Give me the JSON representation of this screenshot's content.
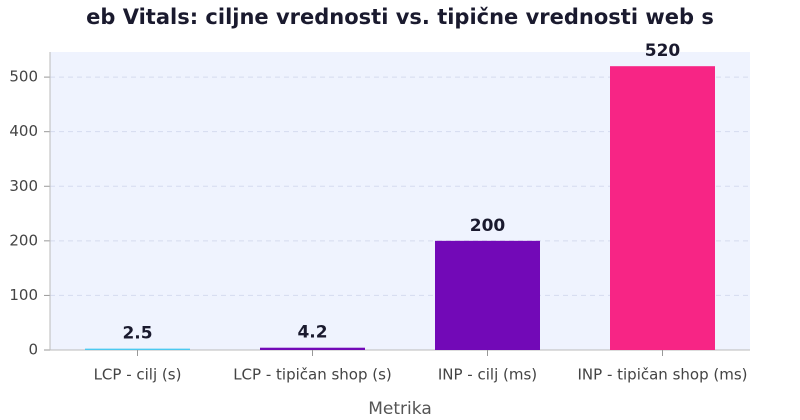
{
  "chart_data": {
    "type": "bar",
    "title": "eb Vitals: ciljne vrednosti vs. tipične vrednosti web s",
    "x_label": "Metrika",
    "categories": [
      "LCP - cilj (s)",
      "LCP - tipičan shop (s)",
      "INP - cilj (ms)",
      "INP - tipičan shop (ms)"
    ],
    "values": [
      2.5,
      4.2,
      200,
      520
    ],
    "colors": [
      "#4cc9f0",
      "#7209b7",
      "#7209b7",
      "#f72585"
    ],
    "ylim": [
      0,
      546
    ],
    "yticks": [
      0,
      100,
      200,
      300,
      400,
      500
    ],
    "grid": true
  }
}
